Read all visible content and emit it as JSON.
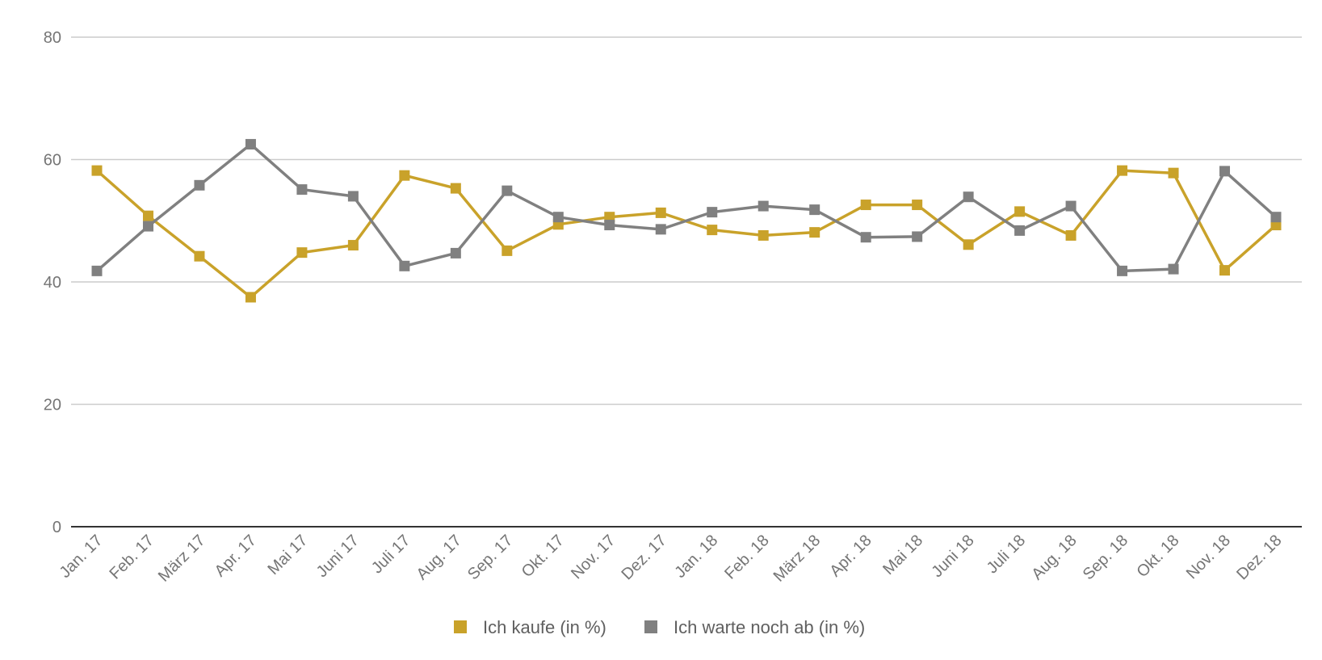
{
  "chart_data": {
    "type": "line",
    "title": "",
    "xlabel": "",
    "ylabel": "",
    "ylim": [
      0,
      80
    ],
    "yticks": [
      0,
      20,
      40,
      60,
      80
    ],
    "grid": true,
    "legend_position": "bottom",
    "categories": [
      "Jan. 17",
      "Feb. 17",
      "März 17",
      "Apr. 17",
      "Mai 17",
      "Juni 17",
      "Juli 17",
      "Aug. 17",
      "Sep. 17",
      "Okt. 17",
      "Nov. 17",
      "Dez. 17",
      "Jan. 18",
      "Feb. 18",
      "März 18",
      "Apr. 18",
      "Mai 18",
      "Juni 18",
      "Juli 18",
      "Aug. 18",
      "Sep. 18",
      "Okt. 18",
      "Nov. 18",
      "Dez. 18"
    ],
    "series": [
      {
        "name": "Ich kaufe (in %)",
        "color": "#C9A22A",
        "values": [
          58.2,
          50.8,
          44.2,
          37.5,
          44.8,
          46.0,
          57.4,
          55.3,
          45.1,
          49.4,
          50.6,
          51.3,
          48.5,
          47.6,
          48.1,
          52.6,
          52.6,
          46.1,
          51.5,
          47.6,
          58.2,
          57.8,
          41.9,
          49.3
        ]
      },
      {
        "name": "Ich warte noch ab (in %)",
        "color": "#808080",
        "values": [
          41.8,
          49.1,
          55.8,
          62.5,
          55.1,
          54.0,
          42.6,
          44.7,
          54.9,
          50.6,
          49.3,
          48.6,
          51.4,
          52.4,
          51.8,
          47.3,
          47.4,
          53.9,
          48.4,
          52.4,
          41.8,
          42.1,
          58.1,
          50.6
        ]
      }
    ]
  }
}
